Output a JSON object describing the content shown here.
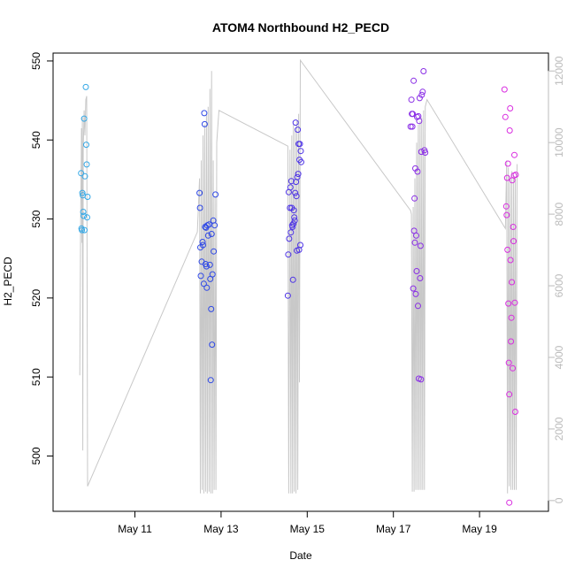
{
  "chart_data": {
    "type": "scatter",
    "title": "ATOM4 Northbound H2_PECD",
    "xlabel": "Date",
    "ylabel": "H2_PECD",
    "x_axis": {
      "unit": "day of May",
      "range": [
        9.1,
        20.6
      ],
      "ticks": [
        11,
        13,
        15,
        17,
        19
      ],
      "tick_labels": [
        "May 11",
        "May 13",
        "May 15",
        "May 17",
        "May 19"
      ]
    },
    "y_axis_left": {
      "range": [
        493,
        551
      ],
      "ticks": [
        500,
        510,
        520,
        530,
        540,
        550
      ],
      "tick_labels": [
        "500",
        "510",
        "520",
        "530",
        "540",
        "550"
      ]
    },
    "y_axis_right": {
      "range": [
        -300,
        12500
      ],
      "ticks": [
        0,
        2000,
        4000,
        6000,
        8000,
        10000,
        12000
      ],
      "tick_labels": [
        "0",
        "2000",
        "4000",
        "6000",
        "8000",
        "10000",
        "12000"
      ],
      "color": "#bbbbbb"
    },
    "point_groups": [
      {
        "color": "#35a8e6",
        "points": [
          [
            9.75,
            535.8
          ],
          [
            9.76,
            528.8
          ],
          [
            9.77,
            528.6
          ],
          [
            9.78,
            533.3
          ],
          [
            9.79,
            533.0
          ],
          [
            9.8,
            530.9
          ],
          [
            9.81,
            530.4
          ],
          [
            9.82,
            542.7
          ],
          [
            9.83,
            528.6
          ],
          [
            9.84,
            535.4
          ],
          [
            9.86,
            546.7
          ],
          [
            9.87,
            539.4
          ],
          [
            9.88,
            536.9
          ],
          [
            9.89,
            530.2
          ],
          [
            9.9,
            532.8
          ]
        ]
      },
      {
        "color": "#2f49e6",
        "points": [
          [
            12.5,
            533.3
          ],
          [
            12.51,
            531.4
          ],
          [
            12.52,
            526.4
          ],
          [
            12.53,
            522.8
          ],
          [
            12.55,
            524.6
          ],
          [
            12.57,
            527.1
          ],
          [
            12.58,
            526.7
          ],
          [
            12.6,
            521.8
          ],
          [
            12.61,
            543.4
          ],
          [
            12.62,
            542.0
          ],
          [
            12.63,
            529.0
          ],
          [
            12.64,
            524.3
          ],
          [
            12.65,
            528.9
          ],
          [
            12.66,
            524.0
          ],
          [
            12.67,
            521.3
          ],
          [
            12.68,
            529.2
          ],
          [
            12.7,
            527.9
          ],
          [
            12.72,
            529.3
          ],
          [
            12.74,
            524.2
          ],
          [
            12.75,
            522.4
          ],
          [
            12.76,
            509.6
          ],
          [
            12.77,
            518.6
          ],
          [
            12.78,
            528.1
          ],
          [
            12.79,
            514.1
          ],
          [
            12.8,
            523.0
          ],
          [
            12.82,
            529.8
          ],
          [
            12.83,
            525.9
          ],
          [
            12.85,
            529.2
          ],
          [
            12.87,
            533.1
          ]
        ]
      },
      {
        "color": "#4d33e6",
        "points": [
          [
            14.55,
            520.3
          ],
          [
            14.56,
            525.5
          ],
          [
            14.57,
            533.4
          ],
          [
            14.58,
            527.5
          ],
          [
            14.6,
            531.4
          ],
          [
            14.61,
            534.0
          ],
          [
            14.62,
            528.3
          ],
          [
            14.63,
            534.8
          ],
          [
            14.64,
            531.4
          ],
          [
            14.65,
            529.2
          ],
          [
            14.66,
            529.0
          ],
          [
            14.67,
            522.3
          ],
          [
            14.68,
            529.4
          ],
          [
            14.69,
            531.1
          ],
          [
            14.7,
            530.2
          ],
          [
            14.71,
            529.8
          ],
          [
            14.72,
            533.3
          ],
          [
            14.73,
            542.2
          ],
          [
            14.74,
            534.7
          ],
          [
            14.75,
            532.9
          ],
          [
            14.76,
            526.0
          ],
          [
            14.77,
            535.3
          ],
          [
            14.78,
            541.3
          ],
          [
            14.79,
            535.7
          ],
          [
            14.8,
            539.5
          ],
          [
            14.81,
            526.1
          ],
          [
            14.82,
            537.5
          ],
          [
            14.83,
            539.5
          ],
          [
            14.84,
            526.7
          ],
          [
            14.85,
            538.6
          ],
          [
            14.86,
            537.2
          ]
        ]
      },
      {
        "color": "#8a2ee6",
        "points": [
          [
            17.4,
            541.7
          ],
          [
            17.42,
            545.1
          ],
          [
            17.43,
            543.3
          ],
          [
            17.44,
            541.7
          ],
          [
            17.45,
            543.3
          ],
          [
            17.46,
            521.2
          ],
          [
            17.47,
            547.5
          ],
          [
            17.48,
            528.5
          ],
          [
            17.49,
            532.6
          ],
          [
            17.5,
            527.0
          ],
          [
            17.51,
            536.4
          ],
          [
            17.52,
            520.5
          ],
          [
            17.53,
            527.9
          ],
          [
            17.54,
            523.4
          ],
          [
            17.55,
            542.9
          ],
          [
            17.56,
            536.0
          ],
          [
            17.57,
            519.0
          ],
          [
            17.58,
            543.0
          ],
          [
            17.59,
            509.8
          ],
          [
            17.6,
            542.4
          ],
          [
            17.61,
            545.3
          ],
          [
            17.62,
            522.5
          ],
          [
            17.63,
            526.6
          ],
          [
            17.64,
            509.7
          ],
          [
            17.65,
            538.5
          ],
          [
            17.66,
            545.7
          ],
          [
            17.68,
            546.1
          ],
          [
            17.7,
            548.7
          ],
          [
            17.72,
            538.7
          ],
          [
            17.74,
            538.4
          ]
        ]
      },
      {
        "color": "#d92ee0",
        "points": [
          [
            19.58,
            546.4
          ],
          [
            19.6,
            542.9
          ],
          [
            19.62,
            531.6
          ],
          [
            19.63,
            530.5
          ],
          [
            19.64,
            535.2
          ],
          [
            19.65,
            526.1
          ],
          [
            19.66,
            537.0
          ],
          [
            19.67,
            519.3
          ],
          [
            19.68,
            511.8
          ],
          [
            19.69,
            507.8
          ],
          [
            19.7,
            541.2
          ],
          [
            19.71,
            544.0
          ],
          [
            19.72,
            524.8
          ],
          [
            19.73,
            514.5
          ],
          [
            19.74,
            517.5
          ],
          [
            19.75,
            522.0
          ],
          [
            19.76,
            534.9
          ],
          [
            19.77,
            511.1
          ],
          [
            19.78,
            529.0
          ],
          [
            19.79,
            527.2
          ],
          [
            19.8,
            535.5
          ],
          [
            19.81,
            538.1
          ],
          [
            19.82,
            519.4
          ],
          [
            19.83,
            505.6
          ],
          [
            19.69,
            494.1
          ],
          [
            19.84,
            535.6
          ]
        ]
      }
    ],
    "line_series": {
      "axis": "right",
      "color": "#c8c8c8",
      "points": [
        [
          9.72,
          3500
        ],
        [
          9.74,
          8000
        ],
        [
          9.75,
          9200
        ],
        [
          9.76,
          10400
        ],
        [
          9.77,
          7200
        ],
        [
          9.78,
          10700
        ],
        [
          9.79,
          1400
        ],
        [
          9.8,
          9800
        ],
        [
          9.82,
          10900
        ],
        [
          9.84,
          10200
        ],
        [
          9.86,
          11200
        ],
        [
          9.88,
          11300
        ],
        [
          9.9,
          400
        ],
        [
          12.45,
          7500
        ],
        [
          12.5,
          9000
        ],
        [
          12.52,
          200
        ],
        [
          12.54,
          9500
        ],
        [
          12.56,
          300
        ],
        [
          12.58,
          10200
        ],
        [
          12.6,
          200
        ],
        [
          12.62,
          10500
        ],
        [
          12.64,
          250
        ],
        [
          12.66,
          10800
        ],
        [
          12.68,
          200
        ],
        [
          12.7,
          11000
        ],
        [
          12.72,
          250
        ],
        [
          12.74,
          11500
        ],
        [
          12.76,
          200
        ],
        [
          12.78,
          12000
        ],
        [
          12.8,
          200
        ],
        [
          12.82,
          9500
        ],
        [
          12.84,
          300
        ],
        [
          12.86,
          8500
        ],
        [
          12.88,
          300
        ],
        [
          12.9,
          10000
        ],
        [
          12.95,
          10900
        ],
        [
          14.55,
          9900
        ],
        [
          14.57,
          200
        ],
        [
          14.6,
          9800
        ],
        [
          14.62,
          200
        ],
        [
          14.64,
          10200
        ],
        [
          14.66,
          200
        ],
        [
          14.68,
          10500
        ],
        [
          14.7,
          250
        ],
        [
          14.72,
          10400
        ],
        [
          14.74,
          200
        ],
        [
          14.76,
          10600
        ],
        [
          14.78,
          300
        ],
        [
          14.8,
          10800
        ],
        [
          14.82,
          3300
        ],
        [
          14.84,
          12300
        ],
        [
          17.4,
          8100
        ],
        [
          17.42,
          8000
        ],
        [
          17.44,
          250
        ],
        [
          17.46,
          8200
        ],
        [
          17.48,
          250
        ],
        [
          17.5,
          9000
        ],
        [
          17.52,
          300
        ],
        [
          17.54,
          10000
        ],
        [
          17.56,
          300
        ],
        [
          17.58,
          10500
        ],
        [
          17.6,
          300
        ],
        [
          17.62,
          10600
        ],
        [
          17.64,
          300
        ],
        [
          17.66,
          10700
        ],
        [
          17.68,
          300
        ],
        [
          17.7,
          10900
        ],
        [
          17.72,
          300
        ],
        [
          17.74,
          11000
        ],
        [
          17.78,
          11200
        ],
        [
          19.6,
          7600
        ],
        [
          19.63,
          9500
        ],
        [
          19.65,
          200
        ],
        [
          19.67,
          9300
        ],
        [
          19.69,
          400
        ],
        [
          19.71,
          9000
        ],
        [
          19.73,
          300
        ],
        [
          19.75,
          9200
        ],
        [
          19.77,
          300
        ],
        [
          19.79,
          9100
        ],
        [
          19.81,
          300
        ],
        [
          19.83,
          9000
        ],
        [
          19.85,
          300
        ],
        [
          19.87,
          9400
        ]
      ]
    },
    "grid": false,
    "legend": "none"
  }
}
